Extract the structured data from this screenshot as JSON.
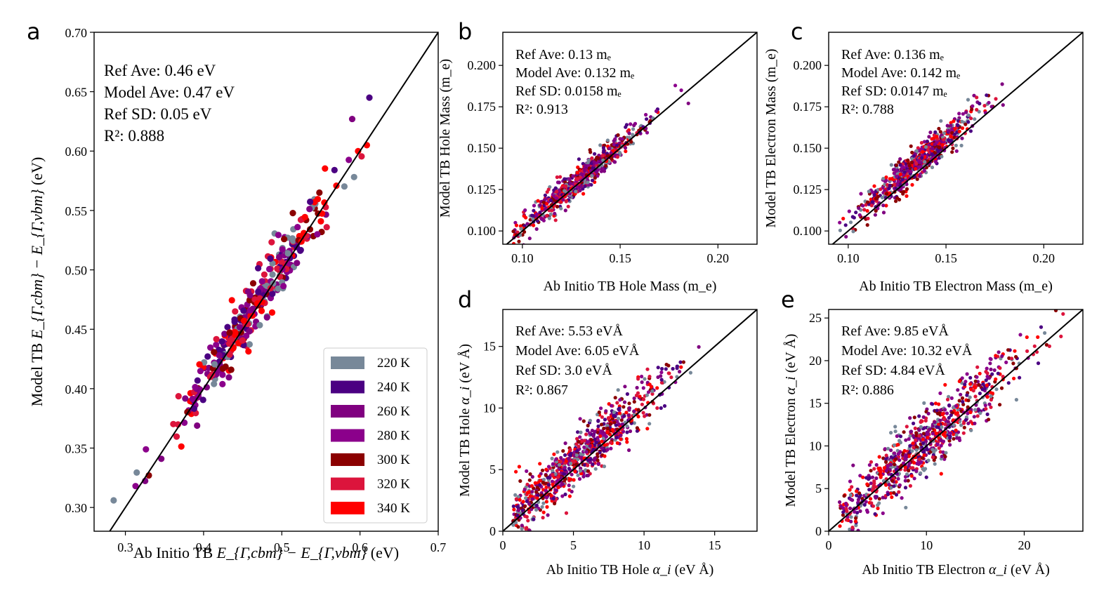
{
  "figure": {
    "temperatures": [
      {
        "label": "220 K",
        "color": "#778899"
      },
      {
        "label": "240 K",
        "color": "#4b0082"
      },
      {
        "label": "260 K",
        "color": "#800080"
      },
      {
        "label": "280 K",
        "color": "#8b008b"
      },
      {
        "label": "300 K",
        "color": "#8b0000"
      },
      {
        "label": "320 K",
        "color": "#dc143c"
      },
      {
        "label": "340 K",
        "color": "#ff0000"
      }
    ]
  },
  "chart_data": [
    {
      "id": "a",
      "panel_label": "a",
      "type": "scatter",
      "xlabel": "Ab Initio TB",
      "xlabel_math": "E_{Γ,cbm} − E_{Γ,vbm}",
      "xlabel_unit": "(eV)",
      "ylabel": "Model TB",
      "ylabel_math": "E_{Γ,cbm} − E_{Γ,vbm}",
      "ylabel_unit": "(eV)",
      "xlim": [
        0.26,
        0.7
      ],
      "ylim": [
        0.28,
        0.7
      ],
      "xticks": [
        0.3,
        0.4,
        0.5,
        0.6,
        0.7
      ],
      "yticks": [
        0.3,
        0.35,
        0.4,
        0.45,
        0.5,
        0.55,
        0.6,
        0.65,
        0.7
      ],
      "tick_decimals": [
        1,
        2
      ],
      "annotations": [
        "Ref Ave: 0.46 eV",
        "Model Ave: 0.47 eV",
        "Ref SD: 0.05 eV",
        "R²: 0.888"
      ],
      "legend": [
        "220 K",
        "240 K",
        "260 K",
        "280 K",
        "300 K",
        "320 K",
        "340 K"
      ],
      "legend_position": "lower-right",
      "reference_line": "y = x",
      "approx_points": 330,
      "offset": 0.005,
      "sd": 0.012,
      "x_mean": 0.47,
      "x_sd": 0.05,
      "highlight_points": [
        [
          0.285,
          0.306
        ],
        [
          0.612,
          0.645
        ],
        [
          0.59,
          0.627
        ],
        [
          0.313,
          0.318
        ],
        [
          0.33,
          0.327
        ]
      ]
    },
    {
      "id": "b",
      "panel_label": "b",
      "type": "scatter",
      "xlabel": "Ab Initio TB Hole Mass",
      "xlabel_unit": "(m_e)",
      "ylabel": "Model TB Hole Mass",
      "ylabel_unit": "(m_e)",
      "xlim": [
        0.09,
        0.22
      ],
      "ylim": [
        0.092,
        0.22
      ],
      "xticks": [
        0.1,
        0.15,
        0.2
      ],
      "yticks": [
        0.1,
        0.125,
        0.15,
        0.175,
        0.2
      ],
      "tick_decimals": [
        2,
        3
      ],
      "annotations": [
        "Ref Ave: 0.13 mₑ",
        "Model Ave: 0.132 mₑ",
        "Ref SD: 0.0158 mₑ",
        "R²: 0.913"
      ],
      "reference_line": "y = x",
      "approx_points": 700,
      "offset": 0.002,
      "sd": 0.004,
      "x_mean": 0.13,
      "x_sd": 0.016
    },
    {
      "id": "c",
      "panel_label": "c",
      "type": "scatter",
      "xlabel": "Ab Initio TB Electron Mass",
      "xlabel_unit": "(m_e)",
      "ylabel": "Model TB Electron Mass",
      "ylabel_unit": "(m_e)",
      "xlim": [
        0.09,
        0.22
      ],
      "ylim": [
        0.092,
        0.22
      ],
      "xticks": [
        0.1,
        0.15,
        0.2
      ],
      "yticks": [
        0.1,
        0.125,
        0.15,
        0.175,
        0.2
      ],
      "tick_decimals": [
        2,
        3
      ],
      "annotations": [
        "Ref Ave: 0.136 mₑ",
        "Model Ave: 0.142 mₑ",
        "Ref SD: 0.0147 mₑ",
        "R²: 0.788"
      ],
      "reference_line": "y = x",
      "approx_points": 700,
      "offset": 0.006,
      "sd": 0.005,
      "x_mean": 0.136,
      "x_sd": 0.015
    },
    {
      "id": "d",
      "panel_label": "d",
      "type": "scatter",
      "xlabel": "Ab Initio TB Hole",
      "xlabel_math": "α_i",
      "xlabel_unit": "(eV Å)",
      "ylabel": "Model TB Hole",
      "ylabel_math": "α_i",
      "ylabel_unit": "(eV Å)",
      "xlim": [
        0,
        18
      ],
      "ylim": [
        0,
        18
      ],
      "xticks": [
        0,
        5,
        10,
        15
      ],
      "yticks": [
        0,
        5,
        10,
        15
      ],
      "tick_decimals": [
        0,
        0
      ],
      "annotations": [
        "Ref Ave: 5.53 eVÅ",
        "Model Ave: 6.05 eVÅ",
        "Ref SD: 3.0 eVÅ",
        "R²: 0.867"
      ],
      "reference_line": "y = x",
      "approx_points": 800,
      "offset": 0.5,
      "sd": 1.1,
      "x_mean": 5.5,
      "x_sd": 3.0
    },
    {
      "id": "e",
      "panel_label": "e",
      "type": "scatter",
      "xlabel": "Ab Initio TB Electron",
      "xlabel_math": "α_i",
      "xlabel_unit": "(eV Å)",
      "ylabel": "Model TB Electron",
      "ylabel_math": "α_i",
      "ylabel_unit": "(eV Å)",
      "xlim": [
        0,
        26
      ],
      "ylim": [
        0,
        26
      ],
      "xticks": [
        0,
        10,
        20
      ],
      "yticks": [
        0,
        5,
        10,
        15,
        20,
        25
      ],
      "tick_decimals": [
        0,
        0
      ],
      "annotations": [
        "Ref Ave: 9.85 eVÅ",
        "Model Ave: 10.32 eVÅ",
        "Ref SD: 4.84 eVÅ",
        "R²: 0.886"
      ],
      "reference_line": "y = x",
      "approx_points": 800,
      "offset": 0.5,
      "sd": 1.8,
      "x_mean": 9.8,
      "x_sd": 4.8
    }
  ]
}
